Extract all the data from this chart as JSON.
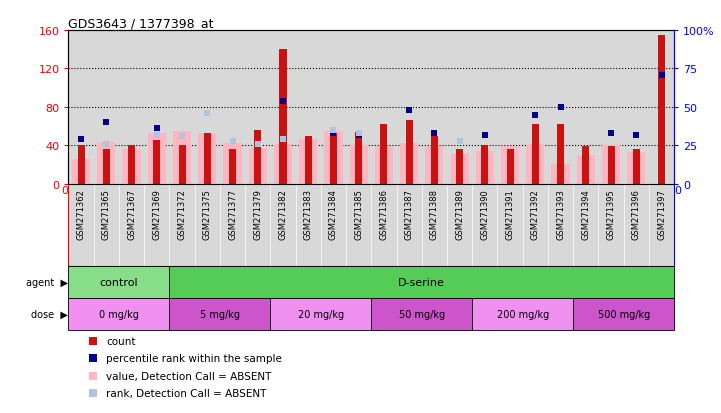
{
  "title": "GDS3643 / 1377398_at",
  "samples": [
    "GSM271362",
    "GSM271365",
    "GSM271367",
    "GSM271369",
    "GSM271372",
    "GSM271375",
    "GSM271377",
    "GSM271379",
    "GSM271382",
    "GSM271383",
    "GSM271384",
    "GSM271385",
    "GSM271386",
    "GSM271387",
    "GSM271388",
    "GSM271389",
    "GSM271390",
    "GSM271391",
    "GSM271392",
    "GSM271393",
    "GSM271394",
    "GSM271395",
    "GSM271396",
    "GSM271397"
  ],
  "count_values": [
    40,
    36,
    40,
    45,
    40,
    53,
    36,
    56,
    140,
    50,
    53,
    54,
    62,
    66,
    50,
    36,
    40,
    36,
    62,
    62,
    39,
    39,
    36,
    155
  ],
  "absent_value": [
    26,
    43,
    36,
    53,
    55,
    53,
    42,
    37,
    41,
    47,
    55,
    40,
    39,
    42,
    39,
    32,
    34,
    39,
    41,
    20,
    30,
    40,
    33,
    null
  ],
  "percentile_rank": [
    29,
    40,
    null,
    36,
    null,
    null,
    null,
    null,
    54,
    null,
    33,
    32,
    null,
    48,
    33,
    28,
    32,
    null,
    45,
    50,
    null,
    33,
    32,
    71
  ],
  "absent_rank": [
    null,
    26,
    null,
    32,
    31,
    46,
    28,
    26,
    29,
    null,
    35,
    33,
    null,
    null,
    null,
    28,
    null,
    null,
    null,
    null,
    null,
    null,
    null,
    null
  ],
  "ylim_left": [
    0,
    160
  ],
  "ylim_right": [
    0,
    100
  ],
  "yticks_left": [
    0,
    40,
    80,
    120,
    160
  ],
  "yticks_right": [
    0,
    25,
    50,
    75,
    100
  ],
  "ytick_labels_left": [
    "0",
    "40",
    "80",
    "120",
    "160"
  ],
  "ytick_labels_right": [
    "0",
    "25",
    "50",
    "75",
    "100%"
  ],
  "count_color": "#cc1111",
  "absent_value_color": "#ffb6c1",
  "percentile_color": "#00008b",
  "absent_rank_color": "#b0c4de",
  "chart_bg_color": "#d8d8d8",
  "agent_groups": [
    {
      "label": "control",
      "start": 0,
      "end": 3,
      "color": "#88dd88"
    },
    {
      "label": "D-serine",
      "start": 4,
      "end": 23,
      "color": "#55cc55"
    }
  ],
  "dose_groups": [
    {
      "label": "0 mg/kg",
      "start": 0,
      "end": 3,
      "color": "#f090f0"
    },
    {
      "label": "5 mg/kg",
      "start": 4,
      "end": 7,
      "color": "#cc55cc"
    },
    {
      "label": "20 mg/kg",
      "start": 8,
      "end": 11,
      "color": "#f090f0"
    },
    {
      "label": "50 mg/kg",
      "start": 12,
      "end": 15,
      "color": "#cc55cc"
    },
    {
      "label": "200 mg/kg",
      "start": 16,
      "end": 19,
      "color": "#f090f0"
    },
    {
      "label": "500 mg/kg",
      "start": 20,
      "end": 23,
      "color": "#cc55cc"
    }
  ]
}
